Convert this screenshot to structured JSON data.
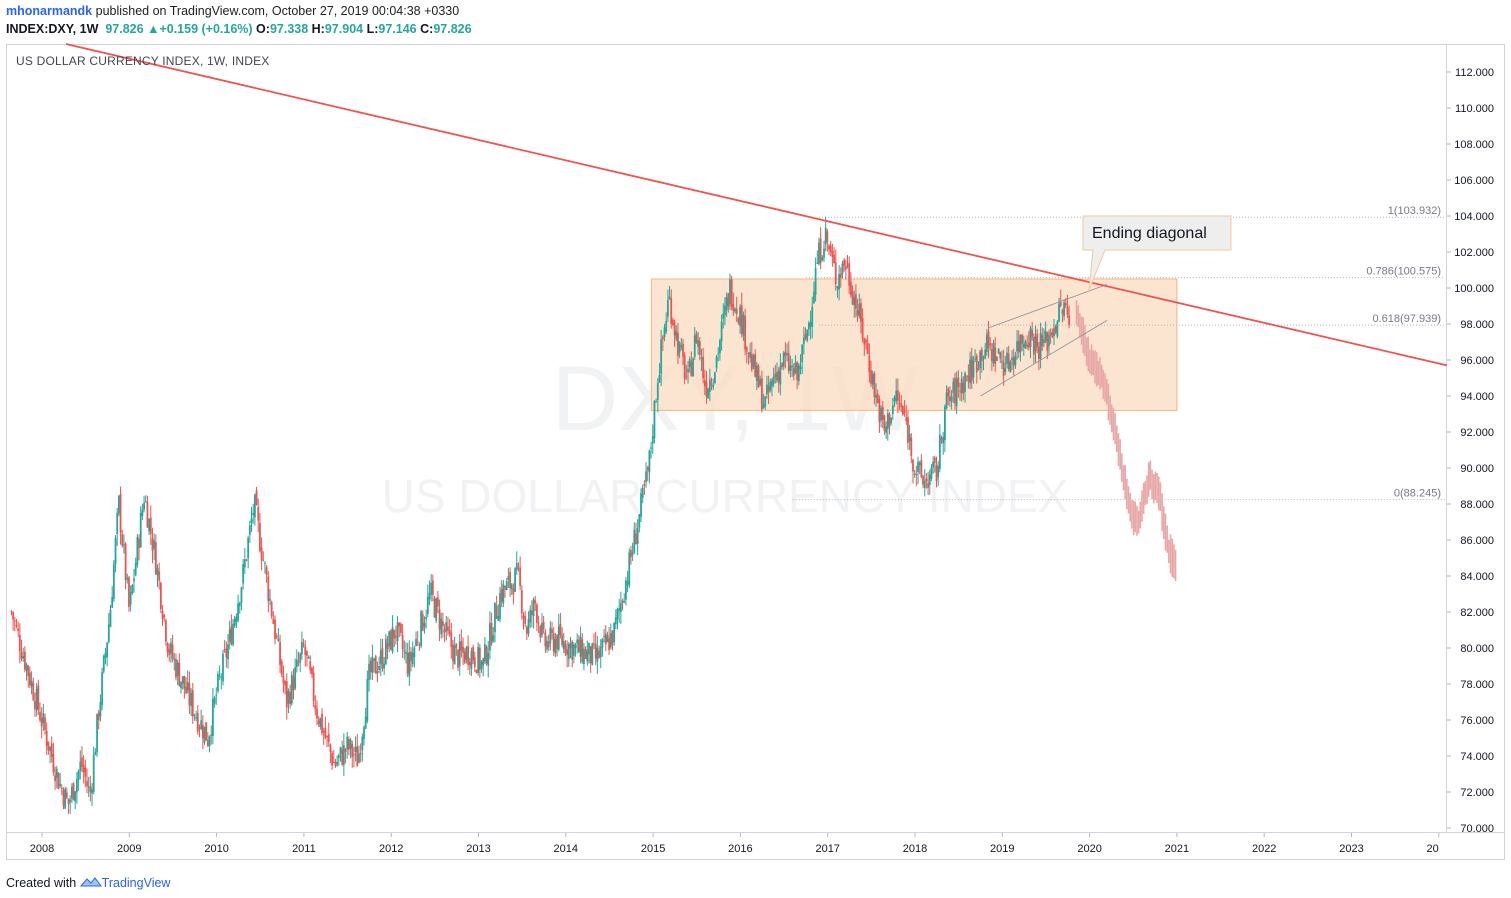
{
  "header": {
    "publisher_user": "mhonarmandk",
    "publisher_rest": " published on TradingView.com, October 27, 2019 00:04:38 +0330",
    "symbol_label": "INDEX:DXY, 1W",
    "last": "97.826",
    "change": "+0.159 (+0.16%)",
    "o_label": "O:",
    "o_val": "97.338",
    "h_label": "H:",
    "h_val": "97.904",
    "l_label": "L:",
    "l_val": "97.146",
    "c_label": "C:",
    "c_val": "97.826",
    "up_arrow_icon": "triangle-up-icon"
  },
  "chart_title": "US DOLLAR CURRENCY INDEX, 1W, INDEX",
  "watermark": {
    "symbol": "DXY, 1W",
    "name": "US DOLLAR CURRENCY INDEX"
  },
  "annotation": {
    "text": "Ending diagonal"
  },
  "footer": {
    "created_with": "Created with",
    "brand": "TradingView",
    "logo_icon": "tradingview-logo-icon"
  },
  "colors": {
    "up": "#26a69a",
    "down": "#ef5350",
    "trendline": "#f05350",
    "box_fill": "#f9dcc2",
    "box_border": "#f4b583",
    "projection": "#e8a8a8",
    "fib_line": "#b2b5be",
    "grid_text": "#131722"
  },
  "chart_data": {
    "type": "candlestick",
    "timeframe": "1W",
    "y_axis": {
      "ylim": [
        70,
        113
      ],
      "ticks": [
        70,
        72,
        74,
        76,
        78,
        80,
        82,
        84,
        86,
        88,
        90,
        92,
        94,
        96,
        98,
        100,
        102,
        104,
        106,
        108,
        110,
        112
      ]
    },
    "x_axis": {
      "xlim": [
        2007.6,
        2024.0
      ],
      "ticks": [
        "2008",
        "2009",
        "2010",
        "2011",
        "2012",
        "2013",
        "2014",
        "2015",
        "2016",
        "2017",
        "2018",
        "2019",
        "2020",
        "2021",
        "2022",
        "2023",
        "20"
      ]
    },
    "price_path": [
      [
        2007.65,
        82.0
      ],
      [
        2008.2,
        72.5
      ],
      [
        2008.3,
        71.3
      ],
      [
        2008.45,
        73.6
      ],
      [
        2008.55,
        71.8
      ],
      [
        2008.65,
        76.5
      ],
      [
        2008.78,
        82.0
      ],
      [
        2008.88,
        88.0
      ],
      [
        2009.0,
        82.0
      ],
      [
        2009.17,
        88.5
      ],
      [
        2009.3,
        85.0
      ],
      [
        2009.45,
        80.0
      ],
      [
        2009.7,
        77.0
      ],
      [
        2009.9,
        75.0
      ],
      [
        2010.0,
        77.5
      ],
      [
        2010.15,
        80.5
      ],
      [
        2010.3,
        84.0
      ],
      [
        2010.43,
        88.0
      ],
      [
        2010.6,
        83.0
      ],
      [
        2010.8,
        77.0
      ],
      [
        2010.9,
        78.5
      ],
      [
        2011.0,
        80.0
      ],
      [
        2011.15,
        76.5
      ],
      [
        2011.35,
        73.5
      ],
      [
        2011.5,
        74.5
      ],
      [
        2011.62,
        73.8
      ],
      [
        2011.75,
        78.5
      ],
      [
        2011.9,
        79.5
      ],
      [
        2012.05,
        81.0
      ],
      [
        2012.2,
        79.0
      ],
      [
        2012.45,
        83.0
      ],
      [
        2012.6,
        81.0
      ],
      [
        2012.75,
        79.5
      ],
      [
        2012.9,
        79.8
      ],
      [
        2013.05,
        79.0
      ],
      [
        2013.25,
        83.0
      ],
      [
        2013.45,
        84.0
      ],
      [
        2013.55,
        81.0
      ],
      [
        2013.65,
        82.5
      ],
      [
        2013.75,
        80.2
      ],
      [
        2013.9,
        80.5
      ],
      [
        2014.1,
        80.0
      ],
      [
        2014.35,
        79.4
      ],
      [
        2014.55,
        80.8
      ],
      [
        2014.7,
        84.0
      ],
      [
        2014.85,
        87.5
      ],
      [
        2014.95,
        90.0
      ],
      [
        2015.05,
        95.0
      ],
      [
        2015.18,
        99.5
      ],
      [
        2015.3,
        96.5
      ],
      [
        2015.4,
        94.8
      ],
      [
        2015.5,
        97.5
      ],
      [
        2015.6,
        94.5
      ],
      [
        2015.7,
        95.5
      ],
      [
        2015.88,
        100.0
      ],
      [
        2016.0,
        98.5
      ],
      [
        2016.12,
        96.0
      ],
      [
        2016.28,
        93.5
      ],
      [
        2016.38,
        95.0
      ],
      [
        2016.5,
        96.0
      ],
      [
        2016.65,
        95.0
      ],
      [
        2016.78,
        98.0
      ],
      [
        2016.88,
        101.5
      ],
      [
        2016.97,
        103.0
      ],
      [
        2017.1,
        100.5
      ],
      [
        2017.2,
        101.5
      ],
      [
        2017.33,
        99.0
      ],
      [
        2017.45,
        96.5
      ],
      [
        2017.55,
        94.0
      ],
      [
        2017.65,
        92.0
      ],
      [
        2017.78,
        94.0
      ],
      [
        2017.9,
        92.5
      ],
      [
        2018.0,
        90.0
      ],
      [
        2018.1,
        89.2
      ],
      [
        2018.25,
        89.8
      ],
      [
        2018.35,
        93.5
      ],
      [
        2018.5,
        94.5
      ],
      [
        2018.65,
        95.5
      ],
      [
        2018.8,
        96.8
      ],
      [
        2018.95,
        96.2
      ],
      [
        2019.05,
        95.7
      ],
      [
        2019.2,
        97.0
      ],
      [
        2019.3,
        97.5
      ],
      [
        2019.4,
        96.8
      ],
      [
        2019.5,
        97.0
      ],
      [
        2019.62,
        98.2
      ],
      [
        2019.7,
        99.0
      ],
      [
        2019.78,
        97.8
      ]
    ],
    "trendline": {
      "from": [
        2007.9,
        112.8
      ],
      "to": [
        2024.0,
        95.7
      ]
    },
    "range_box": {
      "x": [
        2014.98,
        2021.0
      ],
      "y": [
        93.2,
        100.5
      ]
    },
    "ending_diagonal": {
      "upper": [
        [
          2018.85,
          97.8
        ],
        [
          2020.2,
          100.2
        ]
      ],
      "lower": [
        [
          2018.75,
          94.0
        ],
        [
          2020.2,
          98.2
        ]
      ]
    },
    "fib_levels": [
      {
        "label": "1(103.932)",
        "price": 103.932
      },
      {
        "label": "0.786(100.575)",
        "price": 100.575
      },
      {
        "label": "0.618(97.939)",
        "price": 97.939
      },
      {
        "label": "0(88.245)",
        "price": 88.245
      }
    ],
    "projection": [
      [
        2019.85,
        98.8
      ],
      [
        2020.0,
        96.0
      ],
      [
        2020.15,
        95.0
      ],
      [
        2020.3,
        92.0
      ],
      [
        2020.45,
        88.0
      ],
      [
        2020.55,
        86.8
      ],
      [
        2020.68,
        89.5
      ],
      [
        2020.8,
        88.5
      ],
      [
        2020.9,
        85.5
      ],
      [
        2021.0,
        84.5
      ]
    ]
  }
}
